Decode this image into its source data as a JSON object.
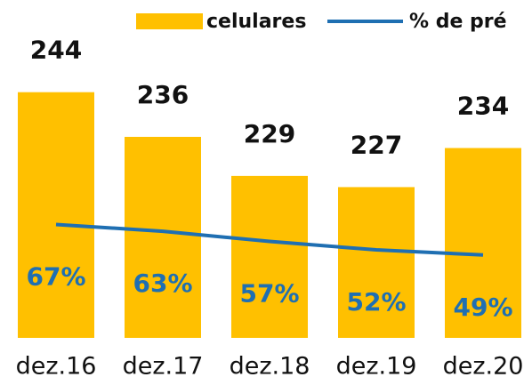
{
  "chart_data": {
    "type": "bar",
    "categories": [
      "dez.16",
      "dez.17",
      "dez.18",
      "dez.19",
      "dez.20"
    ],
    "series": [
      {
        "name": "celulares",
        "type": "bar",
        "color": "#FFC000",
        "values": [
          244,
          236,
          229,
          227,
          234
        ]
      },
      {
        "name": "% de pré",
        "type": "line",
        "axis": "y2",
        "color": "#1F6FB2",
        "values": [
          67,
          63,
          57,
          52,
          49
        ],
        "value_labels": [
          "67%",
          "63%",
          "57%",
          "52%",
          "49%"
        ]
      }
    ],
    "ylim": [
      200,
      250
    ],
    "y2lim": [
      0,
      165
    ],
    "legend": "top-right"
  }
}
